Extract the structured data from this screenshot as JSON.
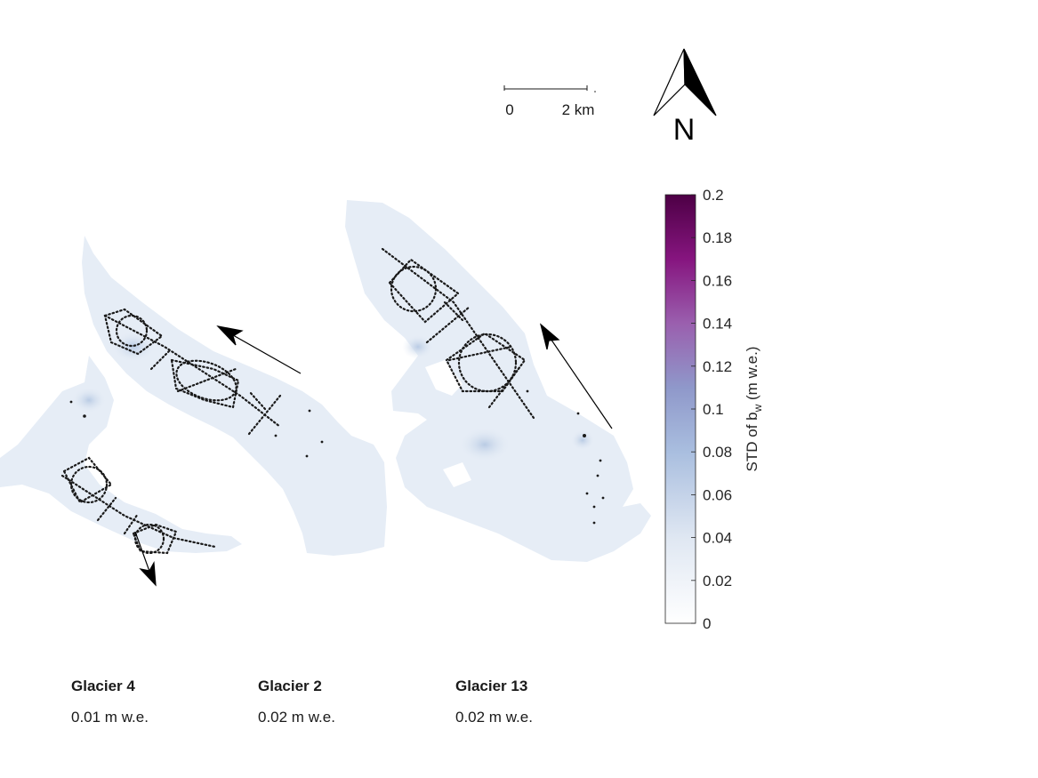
{
  "scale_bar": {
    "start_label": "0",
    "end_label": "2 km"
  },
  "north_arrow": {
    "label": "N",
    "icon": "north-arrow-icon"
  },
  "colorbar": {
    "label_main": "STD of b",
    "label_sub": "w",
    "label_unit": "(m w.e.)",
    "min": 0,
    "max": 0.2,
    "ticks": [
      "0",
      "0.02",
      "0.04",
      "0.06",
      "0.08",
      "0.1",
      "0.12",
      "0.14",
      "0.16",
      "0.18",
      "0.2"
    ],
    "color_low": "#ffffff",
    "color_mid": "#8ca6d1",
    "color_high": "#4d0045"
  },
  "glaciers": [
    {
      "name": "Glacier 4",
      "value": "0.01 m w.e."
    },
    {
      "name": "Glacier 2",
      "value": "0.02 m w.e."
    },
    {
      "name": "Glacier 13",
      "value": "0.02 m w.e."
    }
  ],
  "colors": {
    "glacier_fill": "#e8eef6",
    "glacier_fill_dark": "#d2deed",
    "survey_dots": "#1a1a1a"
  }
}
